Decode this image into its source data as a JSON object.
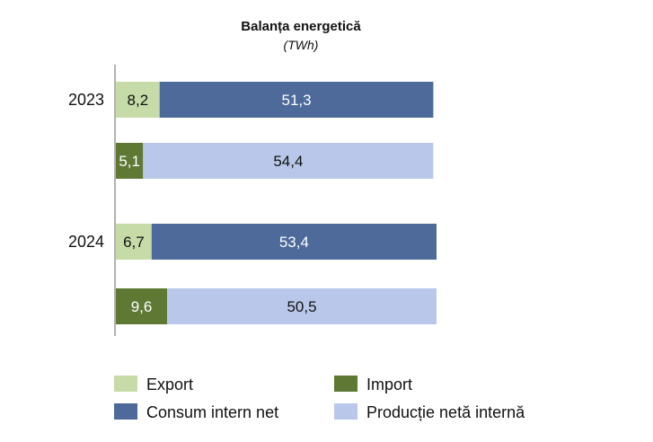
{
  "chart_data": {
    "type": "bar",
    "orientation": "horizontal",
    "stacked": true,
    "title": "Balanța energetică",
    "subtitle": "(TWh)",
    "categories": [
      "2023",
      "2024"
    ],
    "rows": [
      {
        "category": "2023",
        "segments": [
          {
            "series": "Export",
            "value": 8.2,
            "label": "8,2"
          },
          {
            "series": "Consum intern net",
            "value": 51.3,
            "label": "51,3"
          }
        ]
      },
      {
        "category": "2023",
        "segments": [
          {
            "series": "Import",
            "value": 5.1,
            "label": "5,1"
          },
          {
            "series": "Producție netă internă",
            "value": 54.4,
            "label": "54,4"
          }
        ]
      },
      {
        "category": "2024",
        "segments": [
          {
            "series": "Export",
            "value": 6.7,
            "label": "6,7"
          },
          {
            "series": "Consum intern net",
            "value": 53.4,
            "label": "53,4"
          }
        ]
      },
      {
        "category": "2024",
        "segments": [
          {
            "series": "Import",
            "value": 9.6,
            "label": "9,6"
          },
          {
            "series": "Producție netă internă",
            "value": 50.5,
            "label": "50,5"
          }
        ]
      }
    ],
    "series": [
      {
        "name": "Export",
        "color": "#c6dba7",
        "label_color": "dark"
      },
      {
        "name": "Import",
        "color": "#5f7935",
        "label_color": "light"
      },
      {
        "name": "Consum intern net",
        "color": "#4d6a9a",
        "label_color": "light"
      },
      {
        "name": "Producție netă internă",
        "color": "#b9c8ea",
        "label_color": "dark"
      }
    ],
    "legend_order": [
      "Export",
      "Import",
      "Consum intern net",
      "Producție netă internă"
    ],
    "legend_placement": "bottom",
    "xlim": [
      0,
      60.1
    ],
    "grid": false
  }
}
